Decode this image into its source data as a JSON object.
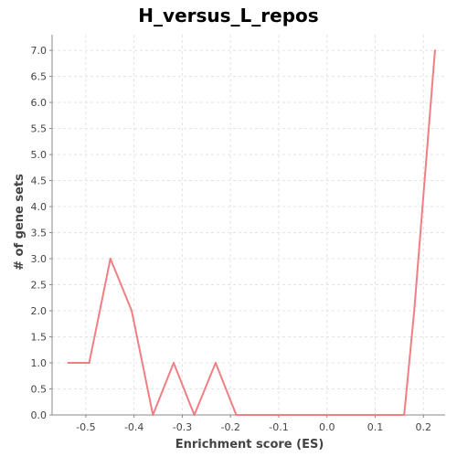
{
  "chart_data": {
    "type": "line",
    "title": "H_versus_L_repos",
    "xlabel": "Enrichment score (ES)",
    "ylabel": "# of gene sets",
    "xlim": [
      -0.57,
      0.245
    ],
    "ylim": [
      0,
      7.3
    ],
    "xticks": [
      -0.5,
      -0.4,
      -0.3,
      -0.2,
      -0.1,
      0.0,
      0.1,
      0.2
    ],
    "xtick_labels": [
      "-0.5",
      "-0.4",
      "-0.3",
      "-0.2",
      "-0.1",
      "0.0",
      "0.1",
      "0.2"
    ],
    "yticks": [
      0,
      0.5,
      1,
      1.5,
      2,
      2.5,
      3,
      3.5,
      4,
      4.5,
      5,
      5.5,
      6,
      6.5,
      7
    ],
    "ytick_labels": [
      "0.0",
      "0.5",
      "1.0",
      "1.5",
      "2.0",
      "2.5",
      "3.0",
      "3.5",
      "4.0",
      "4.5",
      "5.0",
      "5.5",
      "6.0",
      "6.5",
      "7.0"
    ],
    "grid": true,
    "series": [
      {
        "color": "#f07f84",
        "x": [
          -0.537,
          -0.493,
          -0.449,
          -0.405,
          -0.361,
          -0.318,
          -0.275,
          -0.231,
          -0.188,
          -0.145,
          -0.101,
          -0.058,
          -0.014,
          0.029,
          0.073,
          0.116,
          0.16,
          0.181,
          0.224
        ],
        "y": [
          1,
          1,
          3,
          2,
          0,
          1,
          0,
          1,
          0,
          0,
          0,
          0,
          0,
          0,
          0,
          0,
          0,
          2,
          7
        ]
      }
    ]
  }
}
